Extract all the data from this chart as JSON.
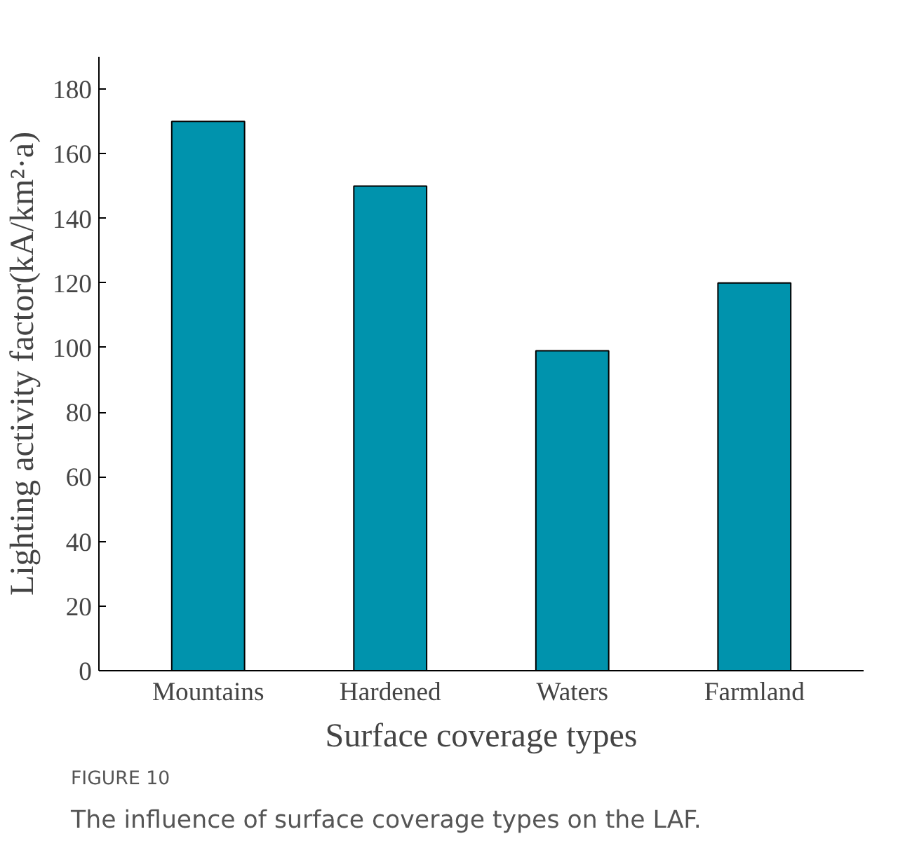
{
  "chart_data": {
    "type": "bar",
    "categories": [
      "Mountains",
      "Hardened",
      "Waters",
      "Farmland"
    ],
    "values": [
      170,
      150,
      99,
      120
    ],
    "color": "#0093ad",
    "xlabel": "Surface coverage types",
    "ylabel": "Lighting activity factor(kA/km²·a)",
    "ylim": [
      0,
      190
    ],
    "yticks": [
      0,
      20,
      40,
      60,
      80,
      100,
      120,
      140,
      160,
      180
    ],
    "grid": false,
    "annotations": [
      "FIGURE 10",
      "The influence of surface coverage types on the LAF."
    ]
  }
}
